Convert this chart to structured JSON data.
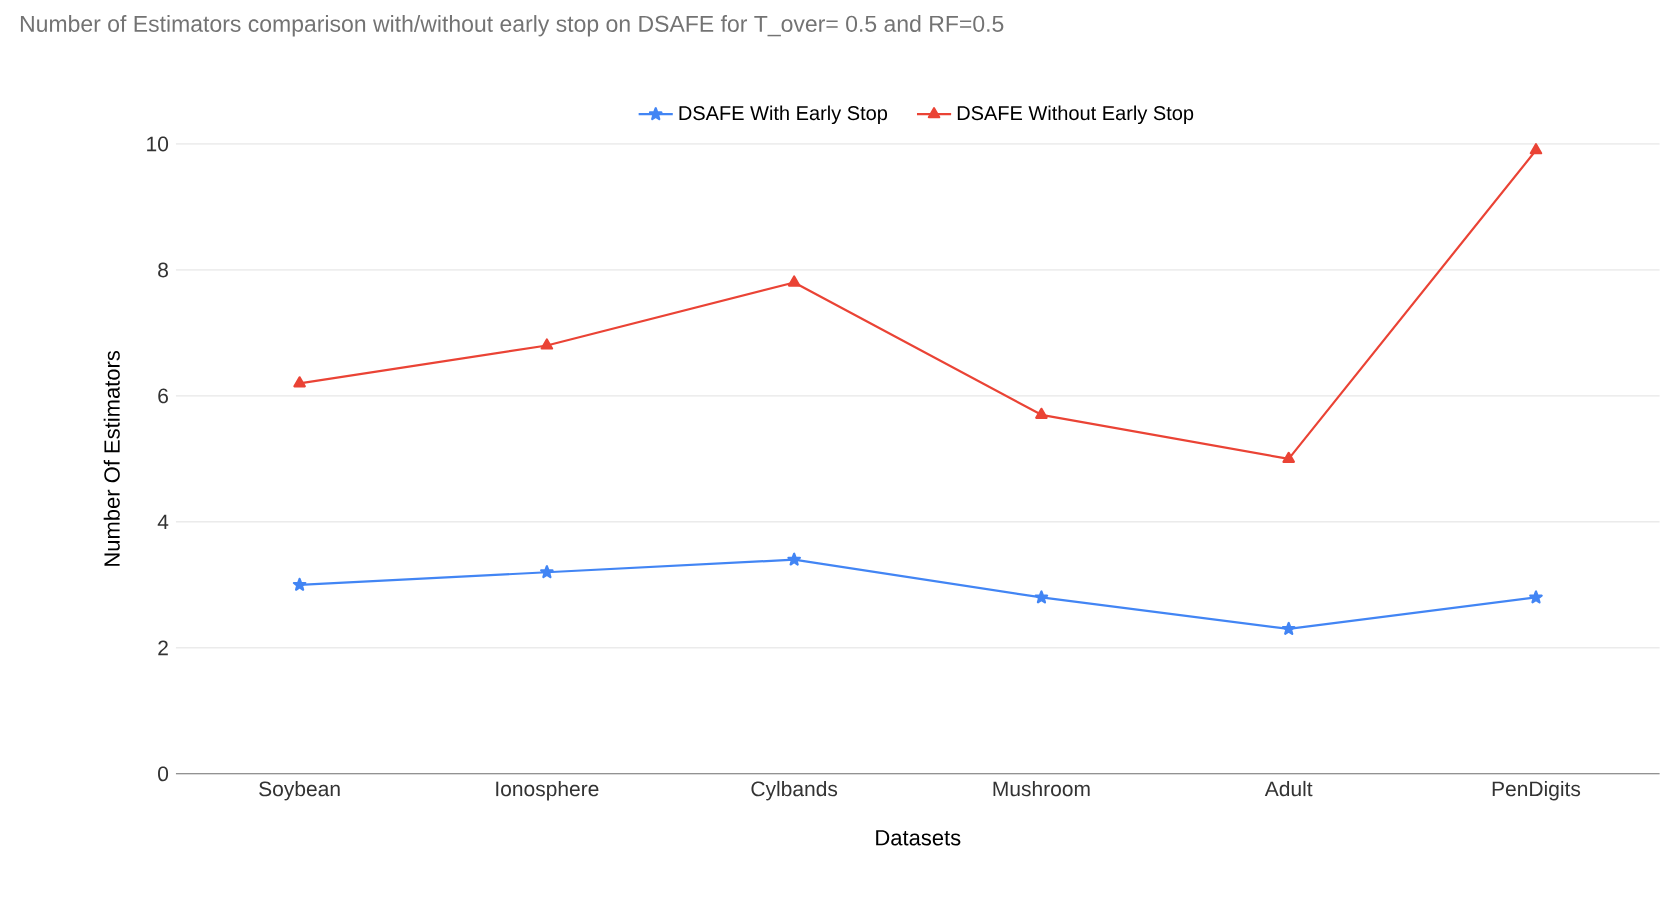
{
  "chart_data": {
    "type": "line",
    "title": "Number of Estimators comparison with/without early stop on DSAFE for T_over= 0.5 and RF=0.5",
    "xlabel": "Datasets",
    "ylabel": "Number Of Estimators",
    "categories": [
      "Soybean",
      "Ionosphere",
      "Cylbands",
      "Mushroom",
      "Adult",
      "PenDigits"
    ],
    "series": [
      {
        "name": "DSAFE With Early Stop",
        "color": "#4285f4",
        "marker": "star",
        "values": [
          3.0,
          3.2,
          3.4,
          2.8,
          2.3,
          2.8
        ]
      },
      {
        "name": "DSAFE Without Early Stop",
        "color": "#ea4335",
        "marker": "triangle",
        "values": [
          6.2,
          6.8,
          7.8,
          5.7,
          5.0,
          9.9
        ]
      }
    ],
    "ylim": [
      0,
      10
    ],
    "yticks": [
      0,
      2,
      4,
      6,
      8,
      10
    ],
    "grid": "y",
    "legend": "top"
  }
}
